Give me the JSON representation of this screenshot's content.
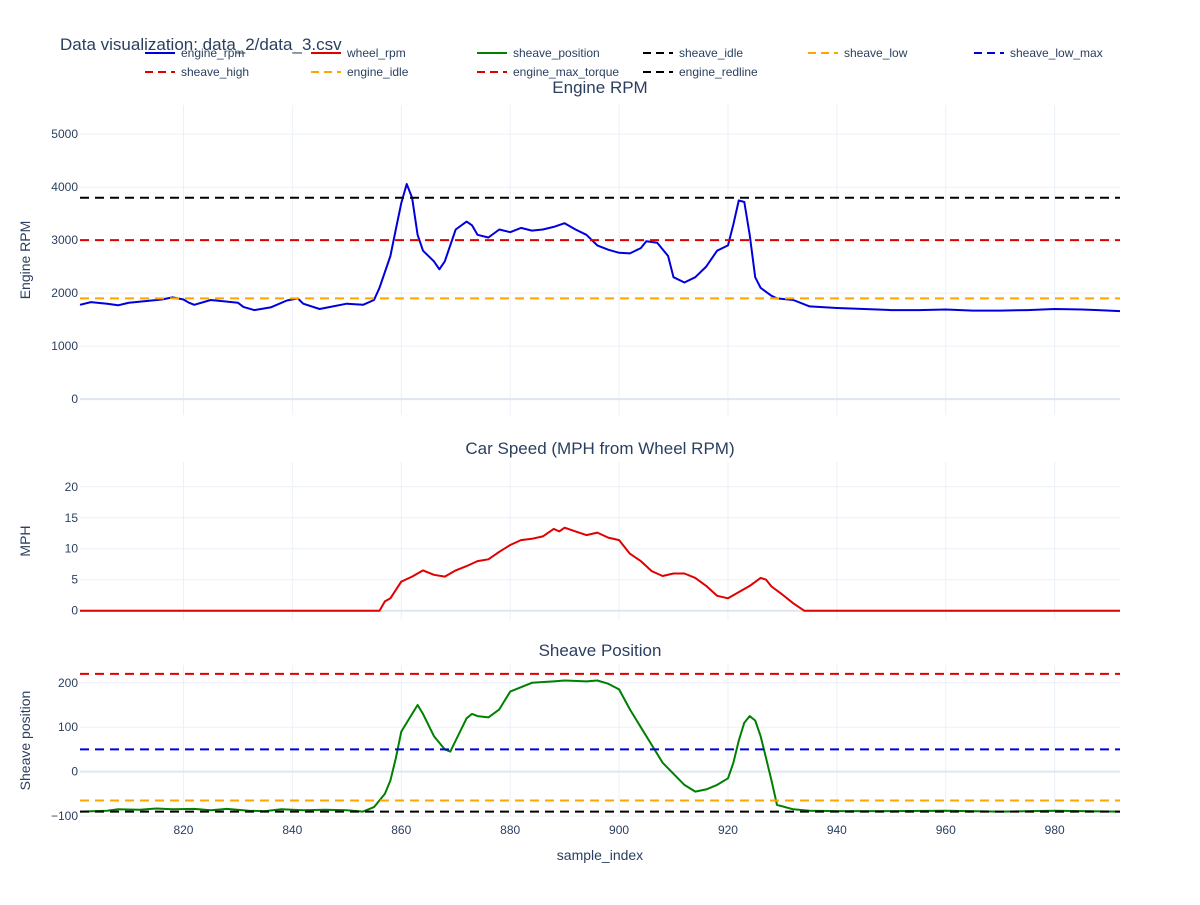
{
  "title": "Data visualization: data_2/data_3.csv",
  "xlabel": "sample_index",
  "x_ticks": [
    820,
    840,
    860,
    880,
    900,
    920,
    940,
    960,
    980
  ],
  "xlim": [
    801,
    992
  ],
  "legend": {
    "placement": "top",
    "entries": [
      {
        "name": "engine_rpm",
        "color": "#0000dd",
        "dash": "solid"
      },
      {
        "name": "wheel_rpm",
        "color": "#e00000",
        "dash": "solid"
      },
      {
        "name": "sheave_position",
        "color": "#008000",
        "dash": "solid"
      },
      {
        "name": "sheave_idle",
        "color": "#000000",
        "dash": "dash"
      },
      {
        "name": "sheave_low",
        "color": "#ffa500",
        "dash": "dash"
      },
      {
        "name": "sheave_low_max",
        "color": "#0000dd",
        "dash": "dash"
      },
      {
        "name": "sheave_high",
        "color": "#e00000",
        "dash": "dash"
      },
      {
        "name": "engine_idle",
        "color": "#ffa500",
        "dash": "dash"
      },
      {
        "name": "engine_max_torque",
        "color": "#e00000",
        "dash": "dash"
      },
      {
        "name": "engine_redline",
        "color": "#000000",
        "dash": "dash"
      }
    ]
  },
  "chart_data": [
    {
      "type": "line",
      "title": "Engine RPM",
      "ylabel": "Engine RPM",
      "ylim": [
        -300,
        5550
      ],
      "y_ticks": [
        0,
        1000,
        2000,
        3000,
        4000,
        5000
      ],
      "grid": true,
      "series": [
        {
          "name": "engine_rpm",
          "color": "#0000dd",
          "dash": "solid",
          "points": [
            [
              801,
              1780
            ],
            [
              803,
              1830
            ],
            [
              806,
              1800
            ],
            [
              808,
              1770
            ],
            [
              810,
              1820
            ],
            [
              813,
              1850
            ],
            [
              816,
              1880
            ],
            [
              818,
              1920
            ],
            [
              820,
              1880
            ],
            [
              821,
              1820
            ],
            [
              822,
              1780
            ],
            [
              825,
              1870
            ],
            [
              828,
              1840
            ],
            [
              830,
              1820
            ],
            [
              831,
              1740
            ],
            [
              833,
              1680
            ],
            [
              836,
              1730
            ],
            [
              839,
              1860
            ],
            [
              841,
              1900
            ],
            [
              842,
              1800
            ],
            [
              845,
              1700
            ],
            [
              847,
              1740
            ],
            [
              850,
              1800
            ],
            [
              853,
              1780
            ],
            [
              855,
              1870
            ],
            [
              856,
              2100
            ],
            [
              858,
              2700
            ],
            [
              859,
              3200
            ],
            [
              860,
              3700
            ],
            [
              861,
              4060
            ],
            [
              862,
              3800
            ],
            [
              863,
              3100
            ],
            [
              864,
              2800
            ],
            [
              866,
              2600
            ],
            [
              867,
              2450
            ],
            [
              868,
              2600
            ],
            [
              870,
              3200
            ],
            [
              872,
              3350
            ],
            [
              873,
              3280
            ],
            [
              874,
              3100
            ],
            [
              876,
              3050
            ],
            [
              878,
              3200
            ],
            [
              880,
              3150
            ],
            [
              882,
              3230
            ],
            [
              884,
              3180
            ],
            [
              886,
              3200
            ],
            [
              888,
              3250
            ],
            [
              890,
              3320
            ],
            [
              892,
              3200
            ],
            [
              894,
              3100
            ],
            [
              896,
              2900
            ],
            [
              898,
              2820
            ],
            [
              900,
              2760
            ],
            [
              902,
              2750
            ],
            [
              904,
              2850
            ],
            [
              905,
              2980
            ],
            [
              907,
              2950
            ],
            [
              909,
              2700
            ],
            [
              910,
              2300
            ],
            [
              912,
              2200
            ],
            [
              914,
              2300
            ],
            [
              916,
              2500
            ],
            [
              918,
              2800
            ],
            [
              920,
              2900
            ],
            [
              921,
              3300
            ],
            [
              922,
              3750
            ],
            [
              923,
              3720
            ],
            [
              924,
              3100
            ],
            [
              925,
              2300
            ],
            [
              926,
              2100
            ],
            [
              928,
              1950
            ],
            [
              929,
              1900
            ],
            [
              932,
              1870
            ],
            [
              935,
              1750
            ],
            [
              940,
              1720
            ],
            [
              945,
              1700
            ],
            [
              950,
              1680
            ],
            [
              955,
              1680
            ],
            [
              960,
              1690
            ],
            [
              965,
              1670
            ],
            [
              970,
              1670
            ],
            [
              975,
              1680
            ],
            [
              980,
              1700
            ],
            [
              985,
              1690
            ],
            [
              988,
              1680
            ],
            [
              992,
              1660
            ]
          ]
        },
        {
          "name": "engine_redline",
          "color": "#000000",
          "dash": "dash",
          "points": [
            [
              801,
              3800
            ],
            [
              992,
              3800
            ]
          ]
        },
        {
          "name": "engine_max_torque",
          "color": "#e00000",
          "dash": "dash",
          "points": [
            [
              801,
              3000
            ],
            [
              992,
              3000
            ]
          ]
        },
        {
          "name": "engine_idle",
          "color": "#ffa500",
          "dash": "dash",
          "points": [
            [
              801,
              1900
            ],
            [
              992,
              1900
            ]
          ]
        }
      ]
    },
    {
      "type": "line",
      "title": "Car Speed (MPH from Wheel RPM)",
      "ylabel": "MPH",
      "ylim": [
        -1.5,
        24
      ],
      "y_ticks": [
        0,
        5,
        10,
        15,
        20
      ],
      "grid": true,
      "series": [
        {
          "name": "wheel_rpm",
          "color": "#e00000",
          "dash": "solid",
          "points": [
            [
              801,
              0
            ],
            [
              856,
              0
            ],
            [
              857,
              1.5
            ],
            [
              858,
              2
            ],
            [
              860,
              4.7
            ],
            [
              862,
              5.5
            ],
            [
              864,
              6.5
            ],
            [
              866,
              5.8
            ],
            [
              868,
              5.5
            ],
            [
              870,
              6.5
            ],
            [
              872,
              7.2
            ],
            [
              874,
              8
            ],
            [
              876,
              8.3
            ],
            [
              878,
              9.5
            ],
            [
              880,
              10.6
            ],
            [
              882,
              11.4
            ],
            [
              884,
              11.6
            ],
            [
              886,
              12
            ],
            [
              888,
              13.2
            ],
            [
              889,
              12.8
            ],
            [
              890,
              13.4
            ],
            [
              892,
              12.8
            ],
            [
              894,
              12.2
            ],
            [
              896,
              12.6
            ],
            [
              898,
              11.8
            ],
            [
              900,
              11.4
            ],
            [
              902,
              9.2
            ],
            [
              904,
              8
            ],
            [
              906,
              6.4
            ],
            [
              908,
              5.6
            ],
            [
              910,
              6
            ],
            [
              912,
              6
            ],
            [
              914,
              5.3
            ],
            [
              916,
              4
            ],
            [
              918,
              2.4
            ],
            [
              920,
              2
            ],
            [
              922,
              3
            ],
            [
              924,
              4
            ],
            [
              926,
              5.3
            ],
            [
              927,
              5
            ],
            [
              928,
              3.9
            ],
            [
              930,
              2.6
            ],
            [
              932,
              1.2
            ],
            [
              934,
              0
            ],
            [
              992,
              0
            ]
          ]
        }
      ]
    },
    {
      "type": "line",
      "title": "Sheave Position",
      "ylabel": "Sheave position",
      "ylim": [
        -100,
        240
      ],
      "y_ticks": [
        -100,
        0,
        100,
        200
      ],
      "grid": true,
      "series": [
        {
          "name": "sheave_position",
          "color": "#008000",
          "dash": "solid",
          "points": [
            [
              801,
              -90
            ],
            [
              806,
              -88
            ],
            [
              808,
              -85
            ],
            [
              812,
              -86
            ],
            [
              815,
              -83
            ],
            [
              818,
              -85
            ],
            [
              822,
              -84
            ],
            [
              825,
              -87
            ],
            [
              828,
              -84
            ],
            [
              832,
              -88
            ],
            [
              835,
              -89
            ],
            [
              838,
              -85
            ],
            [
              842,
              -87
            ],
            [
              846,
              -86
            ],
            [
              850,
              -87
            ],
            [
              853,
              -90
            ],
            [
              855,
              -80
            ],
            [
              857,
              -50
            ],
            [
              858,
              -20
            ],
            [
              859,
              30
            ],
            [
              860,
              90
            ],
            [
              862,
              130
            ],
            [
              863,
              150
            ],
            [
              864,
              130
            ],
            [
              866,
              80
            ],
            [
              868,
              50
            ],
            [
              869,
              45
            ],
            [
              870,
              70
            ],
            [
              872,
              120
            ],
            [
              873,
              130
            ],
            [
              874,
              125
            ],
            [
              876,
              122
            ],
            [
              878,
              140
            ],
            [
              880,
              180
            ],
            [
              882,
              190
            ],
            [
              884,
              200
            ],
            [
              888,
              203
            ],
            [
              890,
              205
            ],
            [
              894,
              203
            ],
            [
              896,
              205
            ],
            [
              898,
              198
            ],
            [
              900,
              185
            ],
            [
              902,
              140
            ],
            [
              904,
              100
            ],
            [
              906,
              60
            ],
            [
              908,
              20
            ],
            [
              910,
              -5
            ],
            [
              912,
              -30
            ],
            [
              914,
              -45
            ],
            [
              916,
              -40
            ],
            [
              918,
              -30
            ],
            [
              920,
              -15
            ],
            [
              921,
              20
            ],
            [
              922,
              70
            ],
            [
              923,
              110
            ],
            [
              924,
              125
            ],
            [
              925,
              115
            ],
            [
              926,
              80
            ],
            [
              927,
              30
            ],
            [
              928,
              -20
            ],
            [
              929,
              -75
            ],
            [
              932,
              -85
            ],
            [
              935,
              -88
            ],
            [
              940,
              -89
            ],
            [
              950,
              -89
            ],
            [
              960,
              -88
            ],
            [
              970,
              -90
            ],
            [
              980,
              -88
            ],
            [
              985,
              -89
            ],
            [
              992,
              -90
            ]
          ]
        },
        {
          "name": "sheave_high",
          "color": "#e00000",
          "dash": "dash",
          "points": [
            [
              801,
              220
            ],
            [
              992,
              220
            ]
          ]
        },
        {
          "name": "sheave_low_max",
          "color": "#0000dd",
          "dash": "dash",
          "points": [
            [
              801,
              50
            ],
            [
              992,
              50
            ]
          ]
        },
        {
          "name": "sheave_low",
          "color": "#ffa500",
          "dash": "dash",
          "points": [
            [
              801,
              -65
            ],
            [
              992,
              -65
            ]
          ]
        },
        {
          "name": "sheave_idle",
          "color": "#000000",
          "dash": "dash",
          "points": [
            [
              801,
              -90
            ],
            [
              992,
              -90
            ]
          ]
        }
      ]
    }
  ]
}
